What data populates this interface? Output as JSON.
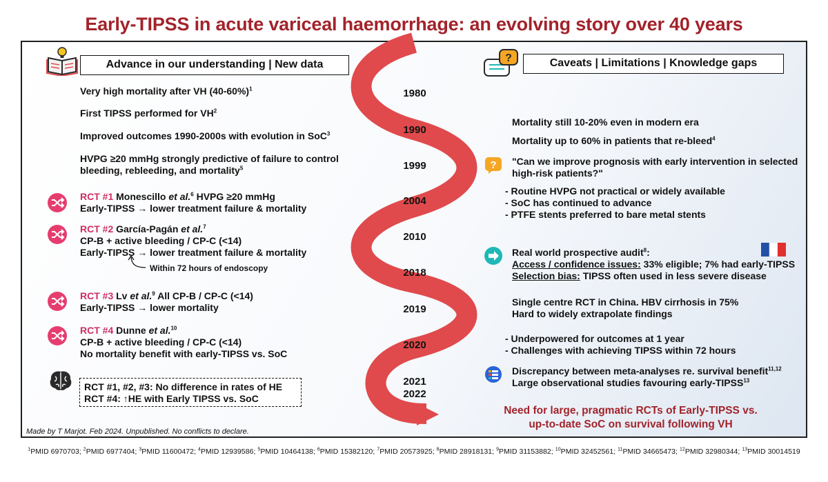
{
  "title": "Early-TIPSS in acute variceal haemorrhage: an evolving story over 40 years",
  "left_header": "Advance in our understanding  |  New data",
  "right_header": "Caveats  |  Limitations  |  Knowledge gaps",
  "years": [
    "1980",
    "1990",
    "1999",
    "2004",
    "2010",
    "2018",
    "2019",
    "2020",
    "2021",
    "2022"
  ],
  "left": {
    "mortality": {
      "text": "Very high mortality after VH (40-60%)",
      "ref": "1"
    },
    "first_tipss": {
      "text": "First TIPSS performed for VH",
      "ref": "2"
    },
    "improved": {
      "text": "Improved outcomes 1990-2000s with evolution in SoC",
      "ref": "3"
    },
    "hvpg": {
      "line1": "HVPG ≥20 mmHg strongly predictive of failure to control",
      "line2": "bleeding, rebleeding, and mortality",
      "ref": "5"
    },
    "rct1": {
      "label": "RCT #1",
      "author": " Monescillo ",
      "etal": "et al.",
      "ref": "6",
      "after": " HVPG ≥20 mmHg",
      "line2": "Early-TIPSS → lower treatment failure & mortality"
    },
    "rct2": {
      "label": "RCT #2",
      "author": " García-Pagán ",
      "etal": "et al.",
      "ref": "7",
      "line2": "CP-B + active bleeding / CP-C (<14)",
      "line3": "Early-TIPSS → lower treatment failure & mortality",
      "note": "Within 72 hours of endoscopy"
    },
    "rct3": {
      "label": "RCT #3",
      "author": " Lv ",
      "etal": "et al.",
      "ref": "9",
      "after": " All CP-B / CP-C (<14)",
      "line2": "Early-TIPSS → lower mortality"
    },
    "rct4": {
      "label": "RCT #4",
      "author": " Dunne ",
      "etal": "et al.",
      "ref": "10",
      "line2": "CP-B + active bleeding / CP-C (<14)",
      "line3": "No mortality benefit with early-TIPSS vs. SoC"
    },
    "he": {
      "line1": "RCT #1, #2, #3: No difference in rates of HE",
      "line2": "RCT #4: ↑HE with Early TIPSS vs. SoC"
    }
  },
  "right": {
    "mortality_modern": "Mortality still 10-20% even in modern era",
    "mortality_rebleed": {
      "text": "Mortality up to 60% in patients that re-bleed",
      "ref": "4"
    },
    "question": {
      "line1": "\"Can we improve prognosis with early intervention in selected",
      "line2": "high-risk patients?\""
    },
    "bullets_1": [
      "- Routine HVPG not practical or widely available",
      "- SoC has continued to advance",
      "- PTFE stents preferred to bare metal stents"
    ],
    "audit": {
      "line1": "Real world prospective audit",
      "ref": "8",
      "colon": ":",
      "access_label": "Access / confidence issues:",
      "access_text": " 33% eligible; 7% had early-TIPSS",
      "bias_label": "Selection bias:",
      "bias_text": " TIPSS often used in less severe disease"
    },
    "china": {
      "line1": "Single centre RCT in China. HBV cirrhosis in 75%",
      "line2": "Hard to widely extrapolate findings"
    },
    "bullets_2": [
      "- Underpowered for outcomes at 1 year",
      "- Challenges with achieving TIPSS within 72 hours"
    ],
    "meta": {
      "line1": "Discrepancy between meta-analyses re. survival benefit",
      "ref1": "11,12",
      "line2": "Large observational studies favouring early-TIPSS",
      "ref2": "13"
    },
    "need": {
      "line1": "Need for large, pragmatic RCTs of Early-TIPSS vs.",
      "line2": "up-to-date SoC on survival following VH"
    }
  },
  "made_by": "Made by T Marjot. Feb 2024. Unpublished. No conflicts to declare.",
  "footer_refs": [
    {
      "n": "1",
      "pmid": "PMID 6970703"
    },
    {
      "n": "2",
      "pmid": "PMID 6977404"
    },
    {
      "n": "3",
      "pmid": "PMID 11600472"
    },
    {
      "n": "4",
      "pmid": "PMID 12939586"
    },
    {
      "n": "5",
      "pmid": "PMID 10464138"
    },
    {
      "n": "6",
      "pmid": "PMID 15382120"
    },
    {
      "n": "7",
      "pmid": "PMID 20573925"
    },
    {
      "n": "8",
      "pmid": "PMID 28918131"
    },
    {
      "n": "9",
      "pmid": "PMID 31153882"
    },
    {
      "n": "10",
      "pmid": "PMID 32452561"
    },
    {
      "n": "11",
      "pmid": "PMID 34665473"
    },
    {
      "n": "12",
      "pmid": "PMID 32980344"
    },
    {
      "n": "13",
      "pmid": "PMID 30014519"
    }
  ],
  "colors": {
    "title": "#a2232b",
    "rct": "#cf2d63",
    "ribbon": "#e04a4c",
    "teal": "#1fb7b7",
    "orange": "#f5a623"
  },
  "icons": [
    "book-lightbulb-icon",
    "speech-bubble-question-icon",
    "shuffle-icon",
    "brain-icon",
    "question-icon",
    "arrow-right-icon",
    "france-flag-icon",
    "meta-analysis-icon"
  ]
}
